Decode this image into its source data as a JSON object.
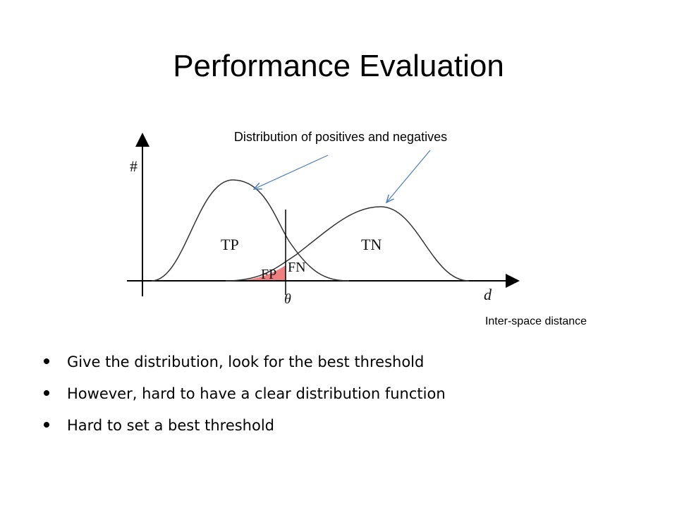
{
  "header": {
    "title": "Performance Evaluation"
  },
  "diagram": {
    "annotation": "Distribution of positives and negatives",
    "y_axis_label": "#",
    "x_axis_label": "d",
    "threshold_label": "θ",
    "regions": {
      "tp": "TP",
      "tn": "TN",
      "fp": "FP",
      "fn": "FN"
    },
    "x_axis_note": "Inter-space distance"
  },
  "bullets": [
    "Give the distribution, look for the best threshold",
    "However, hard to have a clear distribution function",
    "Hard to set a best threshold"
  ]
}
